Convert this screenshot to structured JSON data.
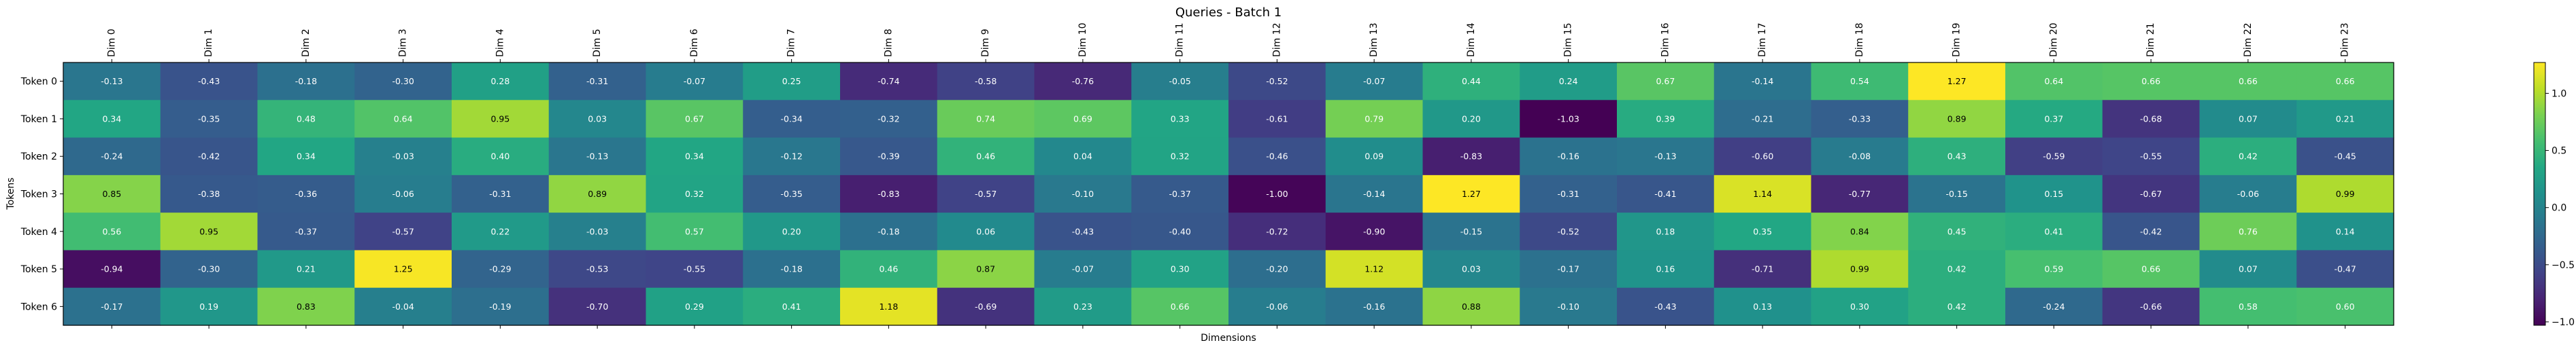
{
  "chart_data": {
    "type": "heatmap",
    "title": "Queries - Batch 1",
    "xlabel": "Dimensions",
    "ylabel": "Tokens",
    "x_tick_labels": [
      "Dim 0",
      "Dim 1",
      "Dim 2",
      "Dim 3",
      "Dim 4",
      "Dim 5",
      "Dim 6",
      "Dim 7",
      "Dim 8",
      "Dim 9",
      "Dim 10",
      "Dim 11",
      "Dim 12",
      "Dim 13",
      "Dim 14",
      "Dim 15",
      "Dim 16",
      "Dim 17",
      "Dim 18",
      "Dim 19",
      "Dim 20",
      "Dim 21",
      "Dim 22",
      "Dim 23"
    ],
    "y_tick_labels": [
      "Token 0",
      "Token 1",
      "Token 2",
      "Token 3",
      "Token 4",
      "Token 5",
      "Token 6"
    ],
    "values": [
      [
        -0.13,
        -0.43,
        -0.18,
        -0.3,
        0.28,
        -0.31,
        -0.07,
        0.25,
        -0.74,
        -0.58,
        -0.76,
        -0.05,
        -0.52,
        -0.07,
        0.44,
        0.24,
        0.67,
        -0.14,
        0.54,
        1.27,
        0.64,
        0.66,
        0.66,
        0.66
      ],
      [
        0.34,
        -0.35,
        0.48,
        0.64,
        0.95,
        0.03,
        0.67,
        -0.34,
        -0.32,
        0.74,
        0.69,
        0.33,
        -0.61,
        0.79,
        0.2,
        -1.03,
        0.39,
        -0.21,
        -0.33,
        0.89,
        0.37,
        -0.68,
        0.07,
        0.21
      ],
      [
        -0.24,
        -0.42,
        0.34,
        -0.03,
        0.4,
        -0.13,
        0.34,
        -0.12,
        -0.39,
        0.46,
        0.04,
        0.32,
        -0.46,
        0.09,
        -0.83,
        -0.16,
        -0.13,
        -0.6,
        -0.08,
        0.43,
        -0.59,
        -0.55,
        0.42,
        -0.45
      ],
      [
        0.85,
        -0.38,
        -0.36,
        -0.06,
        -0.31,
        0.89,
        0.32,
        -0.35,
        -0.83,
        -0.57,
        -0.1,
        -0.37,
        -1.0,
        -0.14,
        1.27,
        -0.31,
        -0.41,
        1.14,
        -0.77,
        -0.15,
        0.15,
        -0.67,
        -0.06,
        0.99
      ],
      [
        0.56,
        0.95,
        -0.37,
        -0.57,
        0.22,
        -0.03,
        0.57,
        0.2,
        -0.18,
        0.06,
        -0.43,
        -0.4,
        -0.72,
        -0.9,
        -0.15,
        -0.52,
        0.18,
        0.35,
        0.84,
        0.45,
        0.41,
        -0.42,
        0.76,
        0.14
      ],
      [
        -0.94,
        -0.3,
        0.21,
        1.25,
        -0.29,
        -0.53,
        -0.55,
        -0.18,
        0.46,
        0.87,
        -0.07,
        0.3,
        -0.2,
        1.12,
        0.03,
        -0.17,
        0.16,
        -0.71,
        0.99,
        0.42,
        0.59,
        0.66,
        0.07,
        -0.47
      ],
      [
        -0.17,
        0.19,
        0.83,
        -0.04,
        -0.19,
        -0.7,
        0.29,
        0.41,
        1.18,
        -0.69,
        0.23,
        0.66,
        -0.06,
        -0.16,
        0.88,
        -0.1,
        -0.43,
        0.13,
        0.3,
        0.42,
        -0.24,
        -0.66,
        0.58,
        0.6
      ]
    ],
    "vmin": -1.03,
    "vmax": 1.27,
    "colormap": "viridis",
    "colorbar_ticks": [
      -1.0,
      -0.5,
      0.0,
      0.5,
      1.0
    ],
    "colorbar_tick_labels": [
      "−1.0",
      "−0.5",
      "0.0",
      "0.5",
      "1.0"
    ],
    "annotation_color_dark": "#ffffff",
    "annotation_color_light": "#000000",
    "grid": false
  }
}
